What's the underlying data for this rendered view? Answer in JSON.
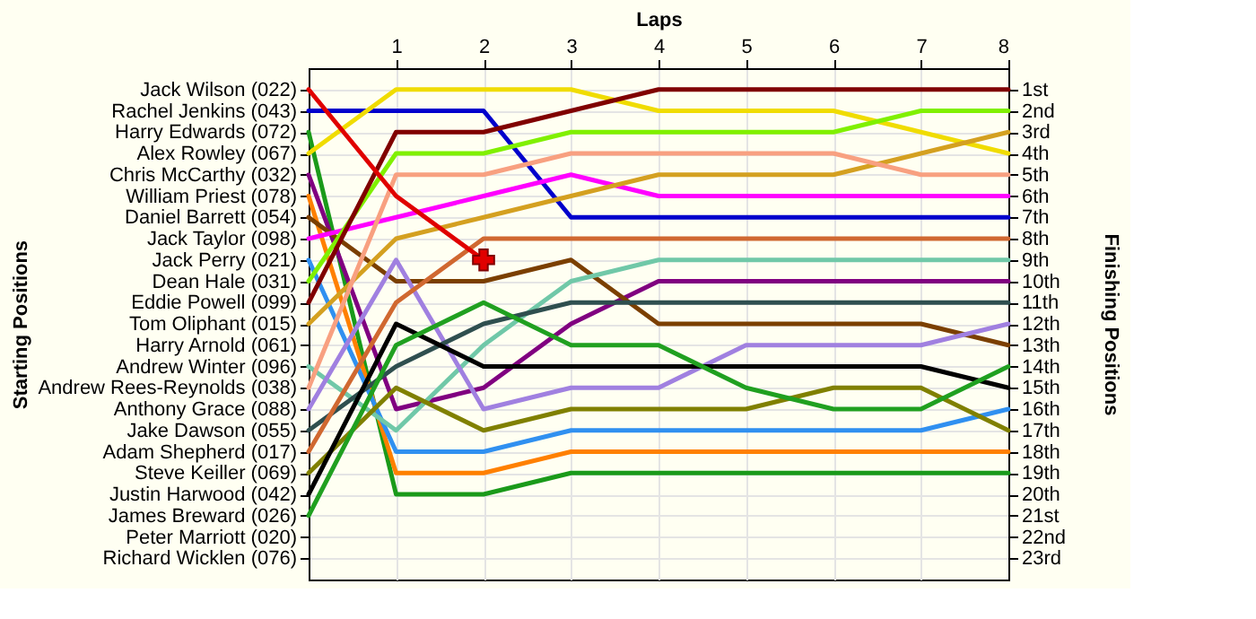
{
  "chart_data": {
    "type": "line",
    "xlabel": "Laps",
    "annotations": [
      "Starting Positions"
    ],
    "y2label": "Finishing Positions",
    "x": [
      0,
      1,
      2,
      3,
      4,
      5,
      6,
      7,
      8
    ],
    "xlim": [
      0,
      8
    ],
    "xticks": [
      1,
      2,
      3,
      4,
      5,
      6,
      7,
      8
    ],
    "y_categories": [
      "Jack Wilson (022)",
      "Rachel Jenkins (043)",
      "Harry Edwards (072)",
      "Alex Rowley (067)",
      "Chris McCarthy (032)",
      "William Priest (078)",
      "Daniel Barrett (054)",
      "Jack Taylor (098)",
      "Jack Perry (021)",
      "Dean Hale (031)",
      "Eddie Powell (099)",
      "Tom Oliphant (015)",
      "Harry Arnold (061)",
      "Andrew Winter (096)",
      "Andrew Rees-Reynolds (038)",
      "Anthony Grace (088)",
      "Jake Dawson (055)",
      "Adam Shepherd (017)",
      "Steve Keiller (069)",
      "Justin Harwood (042)",
      "James Breward (026)",
      "Peter Marriott (020)",
      "Richard Wicklen (076)"
    ],
    "y2lim": [
      24,
      0
    ],
    "y2ticks": [
      {
        "value": 1,
        "label": "1st"
      },
      {
        "value": 2,
        "label": "2nd"
      },
      {
        "value": 3,
        "label": "3rd"
      },
      {
        "value": 4,
        "label": "4th"
      },
      {
        "value": 5,
        "label": "5th"
      },
      {
        "value": 6,
        "label": "6th"
      },
      {
        "value": 7,
        "label": "7th"
      },
      {
        "value": 8,
        "label": "8th"
      },
      {
        "value": 9,
        "label": "9th"
      },
      {
        "value": 10,
        "label": "10th"
      },
      {
        "value": 11,
        "label": "11th"
      },
      {
        "value": 12,
        "label": "12th"
      },
      {
        "value": 13,
        "label": "13th"
      },
      {
        "value": 14,
        "label": "14th"
      },
      {
        "value": 15,
        "label": "15th"
      },
      {
        "value": 16,
        "label": "16th"
      },
      {
        "value": 17,
        "label": "17th"
      },
      {
        "value": 18,
        "label": "18th"
      },
      {
        "value": 19,
        "label": "19th"
      },
      {
        "value": 20,
        "label": "20th"
      },
      {
        "value": 21,
        "label": "21st"
      },
      {
        "value": 22,
        "label": "22nd"
      },
      {
        "value": 23,
        "label": "23rd"
      }
    ],
    "grid": true,
    "legend": false,
    "line_style": "solid",
    "series": [
      {
        "axis": "y2",
        "color": "#0000cc",
        "values": [
          2,
          2,
          2,
          7,
          7,
          7,
          7,
          7,
          7
        ]
      },
      {
        "axis": "y2",
        "color": "#1a9a1a",
        "values": [
          3,
          20,
          20,
          19,
          19,
          19,
          19,
          19,
          19
        ]
      },
      {
        "axis": "y2",
        "color": "#f0dc00",
        "values": [
          4,
          1,
          1,
          1,
          2,
          2,
          2,
          3,
          4
        ]
      },
      {
        "axis": "y2",
        "color": "#800080",
        "values": [
          5,
          16,
          15,
          12,
          10,
          10,
          10,
          10,
          10
        ]
      },
      {
        "axis": "y2",
        "color": "#ff8000",
        "values": [
          6,
          19,
          19,
          18,
          18,
          18,
          18,
          18,
          18
        ]
      },
      {
        "axis": "y2",
        "color": "#7b3f00",
        "values": [
          7,
          10,
          10,
          9,
          12,
          12,
          12,
          12,
          13
        ]
      },
      {
        "axis": "y2",
        "color": "#ff00ff",
        "values": [
          8,
          7,
          6,
          5,
          6,
          6,
          6,
          6,
          6
        ]
      },
      {
        "axis": "y2",
        "color": "#3090f0",
        "values": [
          9,
          18,
          18,
          17,
          17,
          17,
          17,
          17,
          16
        ]
      },
      {
        "axis": "y2",
        "color": "#80f000",
        "values": [
          10,
          4,
          4,
          3,
          3,
          3,
          3,
          2,
          2
        ]
      },
      {
        "axis": "y2",
        "color": "#800000",
        "values": [
          11,
          3,
          3,
          2,
          1,
          1,
          1,
          1,
          1
        ]
      },
      {
        "axis": "y2",
        "color": "#d4a020",
        "values": [
          12,
          8,
          7,
          6,
          5,
          5,
          5,
          4,
          3
        ]
      },
      {
        "axis": "y2",
        "color": "#70c8a8",
        "values": [
          14,
          17,
          13,
          10,
          9,
          9,
          9,
          9,
          9
        ]
      },
      {
        "axis": "y2",
        "color": "#f8a080",
        "values": [
          15,
          5,
          5,
          4,
          4,
          4,
          4,
          5,
          5
        ]
      },
      {
        "axis": "y2",
        "color": "#a080e0",
        "values": [
          16,
          9,
          16,
          15,
          15,
          13,
          13,
          13,
          12
        ]
      },
      {
        "axis": "y2",
        "color": "#2f4f4f",
        "values": [
          17,
          14,
          12,
          11,
          11,
          11,
          11,
          11,
          11
        ]
      },
      {
        "axis": "y2",
        "color": "#d06830",
        "values": [
          18,
          11,
          8,
          8,
          8,
          8,
          8,
          8,
          8
        ]
      },
      {
        "axis": "y2",
        "color": "#808000",
        "values": [
          19,
          15,
          17,
          16,
          16,
          16,
          15,
          15,
          17
        ]
      },
      {
        "axis": "y2",
        "color": "#000000",
        "values": [
          20,
          12,
          14,
          14,
          14,
          14,
          14,
          14,
          15
        ]
      },
      {
        "axis": "y2",
        "color": "#20a020",
        "values": [
          21,
          13,
          11,
          13,
          13,
          15,
          16,
          16,
          14
        ]
      },
      {
        "axis": "y2",
        "color": "#e00000",
        "values": [
          1,
          6,
          9,
          null,
          null,
          null,
          null,
          null,
          null
        ]
      },
      {
        "axis": "y2",
        "type": "scatter",
        "color": "#e00000",
        "x": [
          2
        ],
        "values": [
          9
        ],
        "marker": "cross"
      }
    ]
  }
}
